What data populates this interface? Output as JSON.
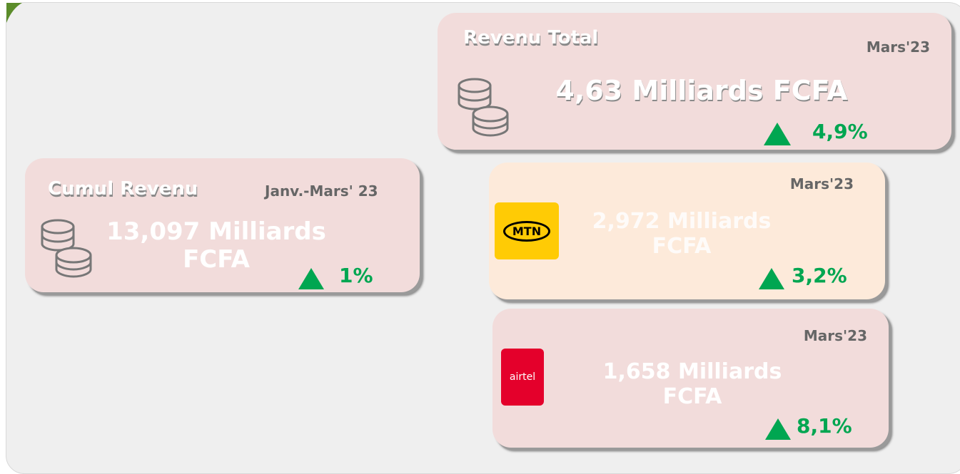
{
  "cards": [
    {
      "title": "Revenu Total",
      "period": "Mars'23",
      "value": "4,63 Milliards FCFA",
      "change": "4,9%"
    },
    {
      "title": "Cumul Revenu",
      "period": "Janv.-Mars' 23",
      "value": "13,097 Milliards FCFA",
      "change": "1%"
    },
    {
      "logo": "MTN",
      "period": "Mars'23",
      "value": "2,972 Milliards FCFA",
      "change": "3,2%"
    },
    {
      "logo": "airtel",
      "period": "Mars'23",
      "value": "1,658 Milliards FCFA",
      "change": "8,1%"
    }
  ]
}
